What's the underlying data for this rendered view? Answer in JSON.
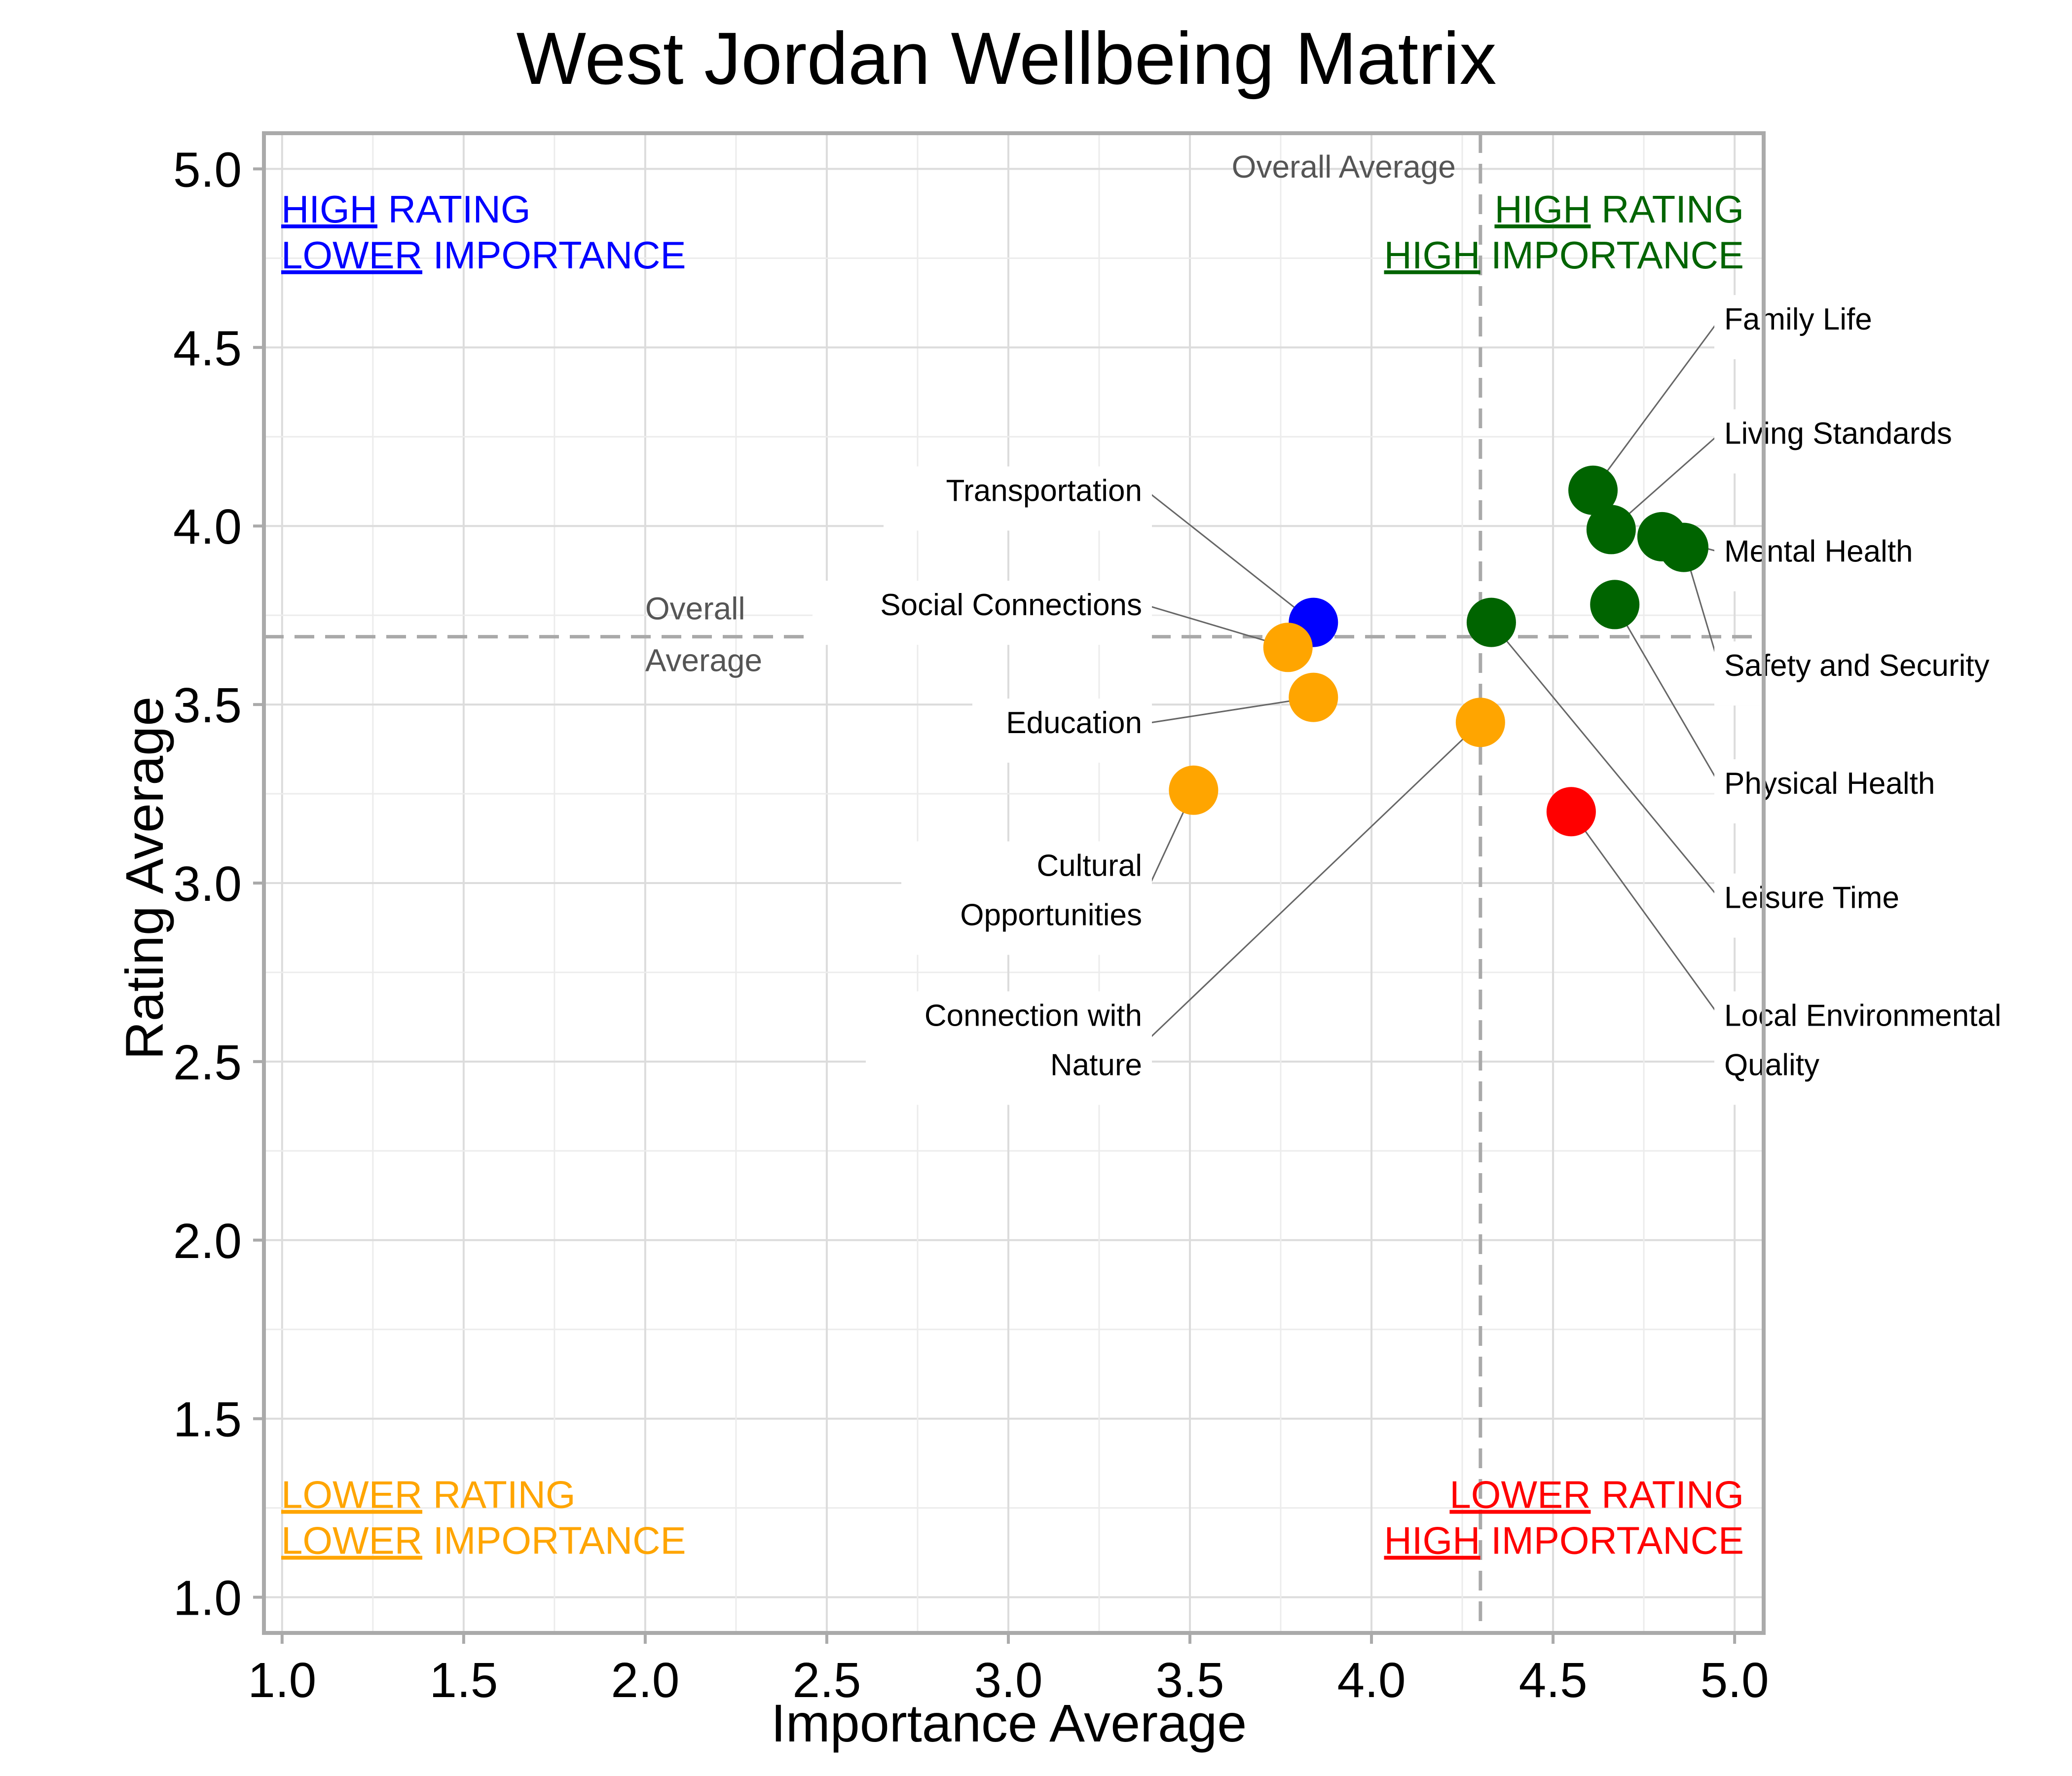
{
  "chart_data": {
    "type": "scatter",
    "title": "West Jordan Wellbeing Matrix",
    "xlabel": "Importance Average",
    "ylabel": "Rating Average",
    "xlim": [
      0.95,
      5.08
    ],
    "ylim": [
      0.9,
      5.1
    ],
    "xticks": [
      "1.0",
      "1.5",
      "2.0",
      "2.5",
      "3.0",
      "3.5",
      "4.0",
      "4.5",
      "5.0"
    ],
    "yticks": [
      "1.0",
      "1.5",
      "2.0",
      "2.5",
      "3.0",
      "3.5",
      "4.0",
      "4.5",
      "5.0"
    ],
    "grid": true,
    "reference_lines": {
      "x": 4.3,
      "y": 3.69,
      "x_label": "Overall Average",
      "y_label_lines": [
        "Overall",
        "Average"
      ]
    },
    "quadrant_colors": {
      "high_rating_high_importance": "#006400",
      "high_rating_lower_importance": "#0000ff",
      "lower_rating_lower_importance": "#ffa500",
      "lower_rating_high_importance": "#ff0000"
    },
    "quadrants": [
      {
        "key": "hr_li",
        "color": "#0000ff",
        "corner": "top-left",
        "line1": {
          "underlined": "HIGH",
          "rest": " RATING"
        },
        "line2": {
          "underlined": "LOWER",
          "rest": " IMPORTANCE"
        }
      },
      {
        "key": "hr_hi",
        "color": "#006400",
        "corner": "top-right",
        "line1": {
          "underlined": "HIGH",
          "rest": " RATING"
        },
        "line2": {
          "underlined": "HIGH",
          "rest": " IMPORTANCE"
        }
      },
      {
        "key": "lr_li",
        "color": "#ffa500",
        "corner": "bottom-left",
        "line1": {
          "underlined": "LOWER",
          "rest": " RATING"
        },
        "line2": {
          "underlined": "LOWER",
          "rest": " IMPORTANCE"
        }
      },
      {
        "key": "lr_hi",
        "color": "#ff0000",
        "corner": "bottom-right",
        "line1": {
          "underlined": "LOWER",
          "rest": " RATING"
        },
        "line2": {
          "underlined": "HIGH",
          "rest": " IMPORTANCE"
        }
      }
    ],
    "points": [
      {
        "label": "Family Life",
        "x": 4.61,
        "y": 4.1,
        "color": "#006400",
        "label_side": "right",
        "label_lines": [
          "Family Life"
        ],
        "label_y": 4.55
      },
      {
        "label": "Living Standards",
        "x": 4.66,
        "y": 3.99,
        "color": "#006400",
        "label_side": "right",
        "label_lines": [
          "Living Standards"
        ],
        "label_y": 4.23
      },
      {
        "label": "Mental Health",
        "x": 4.8,
        "y": 3.97,
        "color": "#006400",
        "label_side": "right",
        "label_lines": [
          "Mental Health"
        ],
        "label_y": 3.9
      },
      {
        "label": "Safety and Security",
        "x": 4.86,
        "y": 3.94,
        "color": "#006400",
        "label_side": "right",
        "label_lines": [
          "Safety and Security"
        ],
        "label_y": 3.58
      },
      {
        "label": "Physical Health",
        "x": 4.67,
        "y": 3.78,
        "color": "#006400",
        "label_side": "right",
        "label_lines": [
          "Physical Health"
        ],
        "label_y": 3.25
      },
      {
        "label": "Leisure Time",
        "x": 4.33,
        "y": 3.73,
        "color": "#006400",
        "label_side": "right",
        "label_lines": [
          "Leisure Time"
        ],
        "label_y": 2.93
      },
      {
        "label": "Local Environmental Quality",
        "x": 4.55,
        "y": 3.2,
        "color": "#ff0000",
        "label_side": "right",
        "label_lines": [
          "Local Environmental",
          "Quality"
        ],
        "label_y": 2.6
      },
      {
        "label": "Transportation",
        "x": 3.84,
        "y": 3.73,
        "color": "#0000ff",
        "label_side": "left",
        "label_lines": [
          "Transportation"
        ],
        "label_y": 4.07
      },
      {
        "label": "Social Connections",
        "x": 3.77,
        "y": 3.66,
        "color": "#ffa500",
        "label_side": "left",
        "label_lines": [
          "Social Connections"
        ],
        "label_y": 3.75
      },
      {
        "label": "Education",
        "x": 3.84,
        "y": 3.52,
        "color": "#ffa500",
        "label_side": "left",
        "label_lines": [
          "Education"
        ],
        "label_y": 3.42
      },
      {
        "label": "Cultural Opportunities",
        "x": 3.51,
        "y": 3.26,
        "color": "#ffa500",
        "label_side": "left",
        "label_lines": [
          "Cultural",
          "Opportunities"
        ],
        "label_y": 3.02
      },
      {
        "label": "Connection with Nature",
        "x": 4.3,
        "y": 3.45,
        "color": "#ffa500",
        "label_side": "left",
        "label_lines": [
          "Connection with",
          "Nature"
        ],
        "label_y": 2.6
      }
    ]
  }
}
